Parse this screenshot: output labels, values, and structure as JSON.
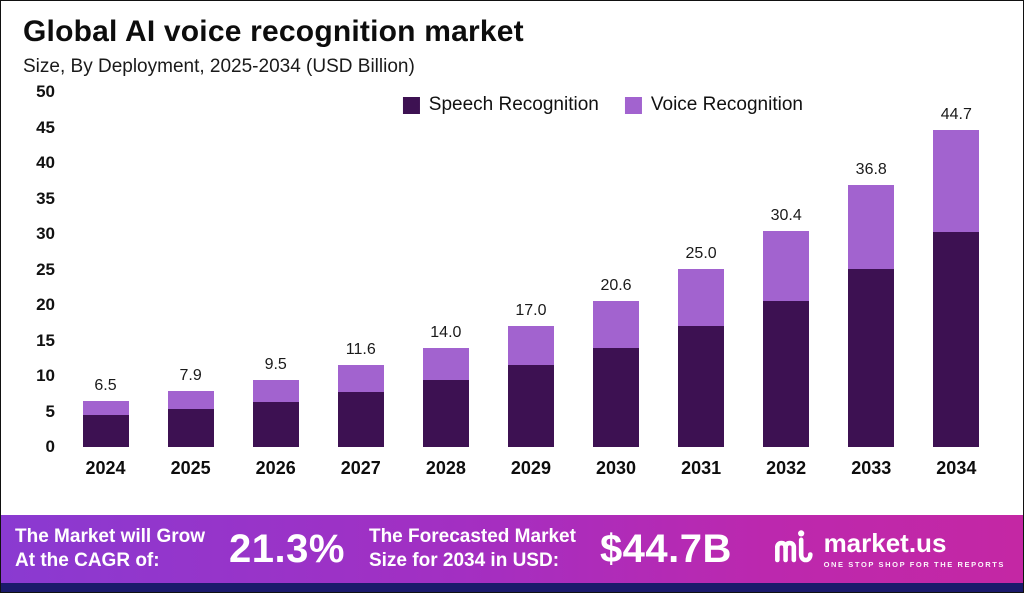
{
  "header": {
    "title": "Global AI voice recognition market",
    "subtitle": "Size, By Deployment, 2025-2034 (USD Billion)"
  },
  "chart_data": {
    "type": "bar",
    "stacked": true,
    "title": "Global AI voice recognition market",
    "subtitle": "Size, By Deployment, 2025-2034 (USD Billion)",
    "unit": "USD Billion",
    "categories": [
      "2024",
      "2025",
      "2026",
      "2027",
      "2028",
      "2029",
      "2030",
      "2031",
      "2032",
      "2033",
      "2034"
    ],
    "series": [
      {
        "name": "Speech Recognition",
        "color": "#3d1152",
        "values": [
          4.5,
          5.3,
          6.4,
          7.8,
          9.5,
          11.5,
          14.0,
          17.0,
          20.6,
          25.0,
          30.3
        ]
      },
      {
        "name": "Voice Recognition",
        "color": "#a263cf",
        "values": [
          2.0,
          2.6,
          3.1,
          3.8,
          4.5,
          5.5,
          6.6,
          8.0,
          9.8,
          11.8,
          14.4
        ]
      }
    ],
    "totals": [
      6.5,
      7.9,
      9.5,
      11.6,
      14.0,
      17.0,
      20.6,
      25.0,
      30.4,
      36.8,
      44.7
    ],
    "totals_labels": [
      "6.5",
      "7.9",
      "9.5",
      "11.6",
      "14.0",
      "17.0",
      "20.6",
      "25.0",
      "30.4",
      "36.8",
      "44.7"
    ],
    "ylim": [
      0,
      50
    ],
    "yticks": [
      0,
      5,
      10,
      15,
      20,
      25,
      30,
      35,
      40,
      45,
      50
    ],
    "grid": false,
    "legend_position": "top-center"
  },
  "banner": {
    "cagr_label": "The Market will Grow\nAt the CAGR of:",
    "cagr_value": "21.3%",
    "forecast_label": "The Forecasted Market\nSize for 2034 in USD:",
    "forecast_value": "$44.7B",
    "brand_name": "market.us",
    "brand_tagline": "ONE STOP SHOP FOR THE REPORTS",
    "gradient_start": "#8a3ad1",
    "gradient_end": "#c427a4",
    "strip_color": "#1b1a6b"
  }
}
